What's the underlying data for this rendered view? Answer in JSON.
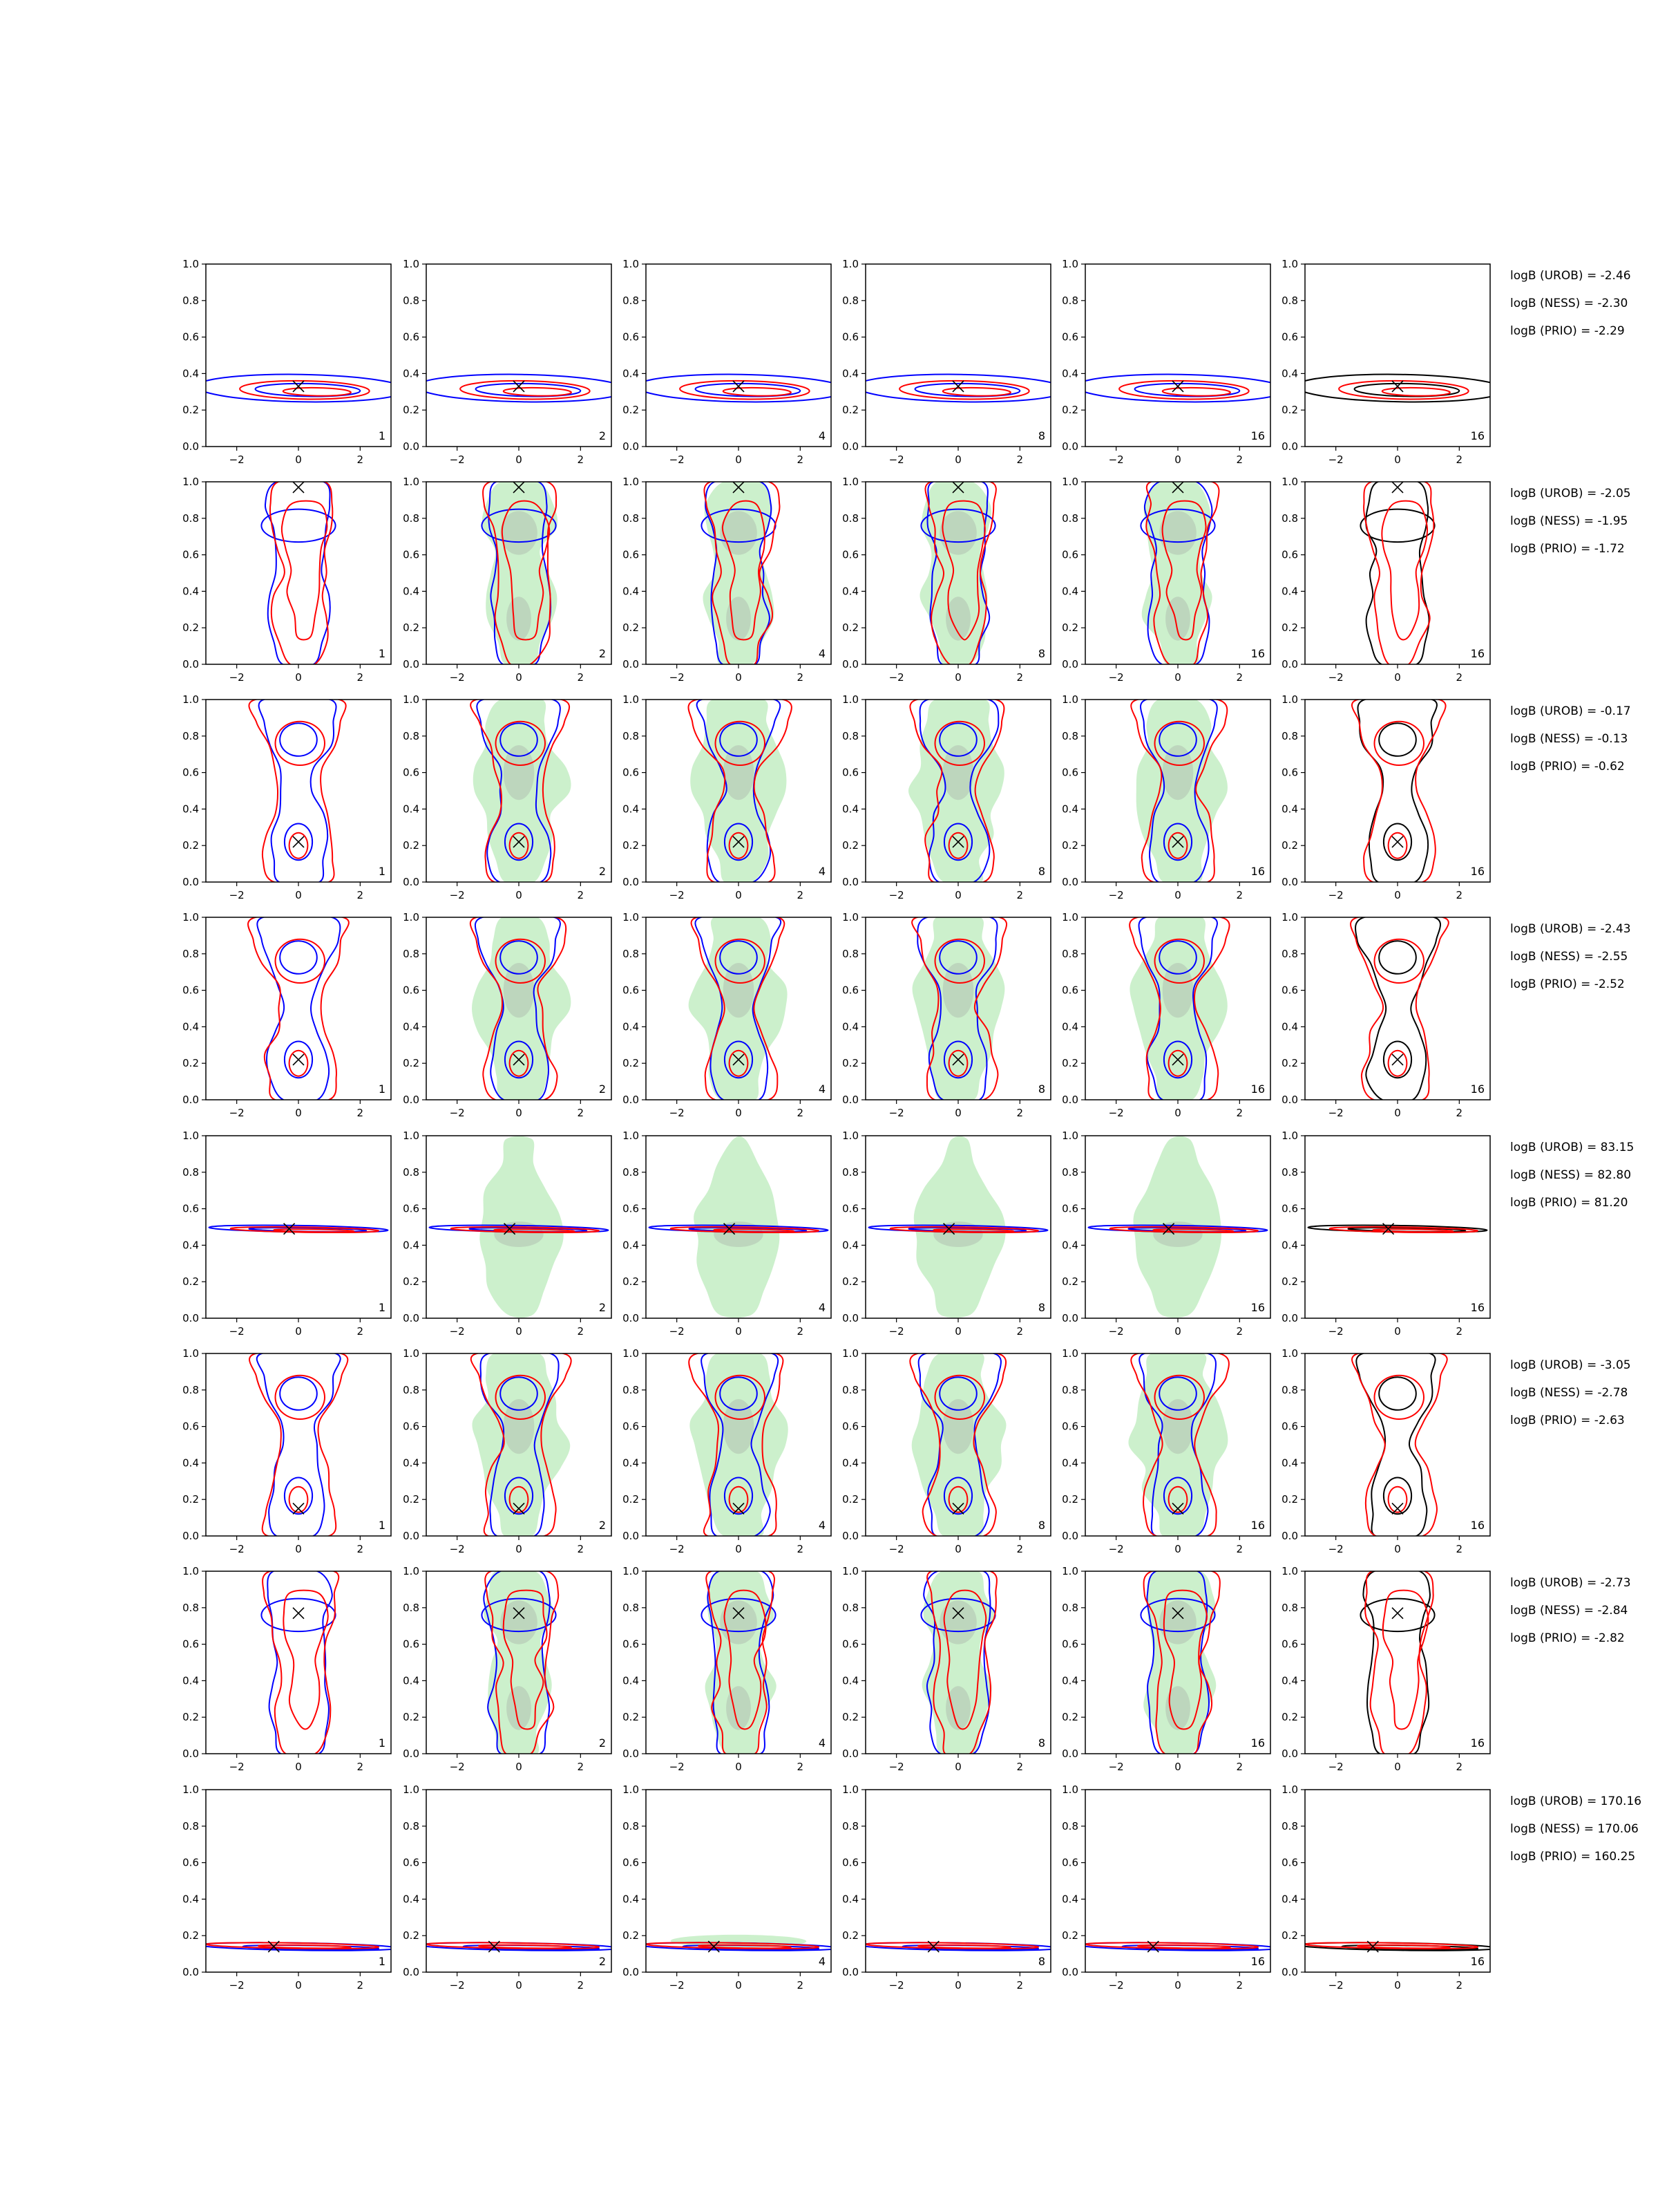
{
  "figure": {
    "x_ticks": [
      "−2",
      "0",
      "2"
    ],
    "y_ticks": [
      "0.0",
      "0.2",
      "0.4",
      "0.6",
      "0.8",
      "1.0"
    ],
    "colors": {
      "blue": "#0000ff",
      "red": "#ff0000",
      "black": "#000000",
      "green_fill": "#8fde8f",
      "grey_fill": "#9a9a9a"
    },
    "column_labels": [
      "1",
      "2",
      "4",
      "8",
      "16",
      "16"
    ]
  },
  "chart_data": {
    "type": "contour-grid",
    "rows": 8,
    "cols": 6,
    "xlim": [
      -3,
      3
    ],
    "ylim": [
      0,
      1
    ],
    "columns": [
      {
        "label": "1",
        "style": "blue-red"
      },
      {
        "label": "2",
        "style": "blue-red-green"
      },
      {
        "label": "4",
        "style": "blue-red-green"
      },
      {
        "label": "8",
        "style": "blue-red-green"
      },
      {
        "label": "16",
        "style": "blue-red-green"
      },
      {
        "label": "16",
        "style": "black-red"
      }
    ],
    "panels": [
      {
        "marker": {
          "x": 0.0,
          "y": 0.33
        },
        "shape": "horizontal",
        "logB": {
          "UROB": "logB (UROB) = -2.46",
          "NESS": "logB (NESS) = -2.30",
          "PRIO": "logB (PRIO) = -2.29"
        }
      },
      {
        "marker": {
          "x": 0.0,
          "y": 0.97
        },
        "shape": "vertical-upper",
        "logB": {
          "UROB": "logB (UROB) = -2.05",
          "NESS": "logB (NESS) = -1.95",
          "PRIO": "logB (PRIO) = -1.72"
        }
      },
      {
        "marker": {
          "x": 0.0,
          "y": 0.22
        },
        "shape": "vertical-double",
        "logB": {
          "UROB": "logB (UROB) = -0.17",
          "NESS": "logB (NESS) = -0.13",
          "PRIO": "logB (PRIO) = -0.62"
        }
      },
      {
        "marker": {
          "x": 0.0,
          "y": 0.22
        },
        "shape": "vertical-double",
        "logB": {
          "UROB": "logB (UROB) = -2.43",
          "NESS": "logB (NESS) = -2.55",
          "PRIO": "logB (PRIO) = -2.52"
        }
      },
      {
        "marker": {
          "x": -0.3,
          "y": 0.49
        },
        "shape": "thin-tilted",
        "logB": {
          "UROB": "logB (UROB) = 83.15",
          "NESS": "logB (NESS) = 82.80",
          "PRIO": "logB (PRIO) = 81.20"
        }
      },
      {
        "marker": {
          "x": 0.0,
          "y": 0.15
        },
        "shape": "vertical-double",
        "logB": {
          "UROB": "logB (UROB) = -3.05",
          "NESS": "logB (NESS) = -2.78",
          "PRIO": "logB (PRIO) = -2.63"
        }
      },
      {
        "marker": {
          "x": 0.0,
          "y": 0.77
        },
        "shape": "vertical-upper",
        "logB": {
          "UROB": "logB (UROB) = -2.73",
          "NESS": "logB (NESS) = -2.84",
          "PRIO": "logB (PRIO) = -2.82"
        }
      },
      {
        "marker": {
          "x": -0.8,
          "y": 0.14
        },
        "shape": "thin-tilted-low",
        "logB": {
          "UROB": "logB (UROB) = 170.16",
          "NESS": "logB (NESS) = 170.06",
          "PRIO": "logB (PRIO) = 160.25"
        }
      }
    ]
  }
}
